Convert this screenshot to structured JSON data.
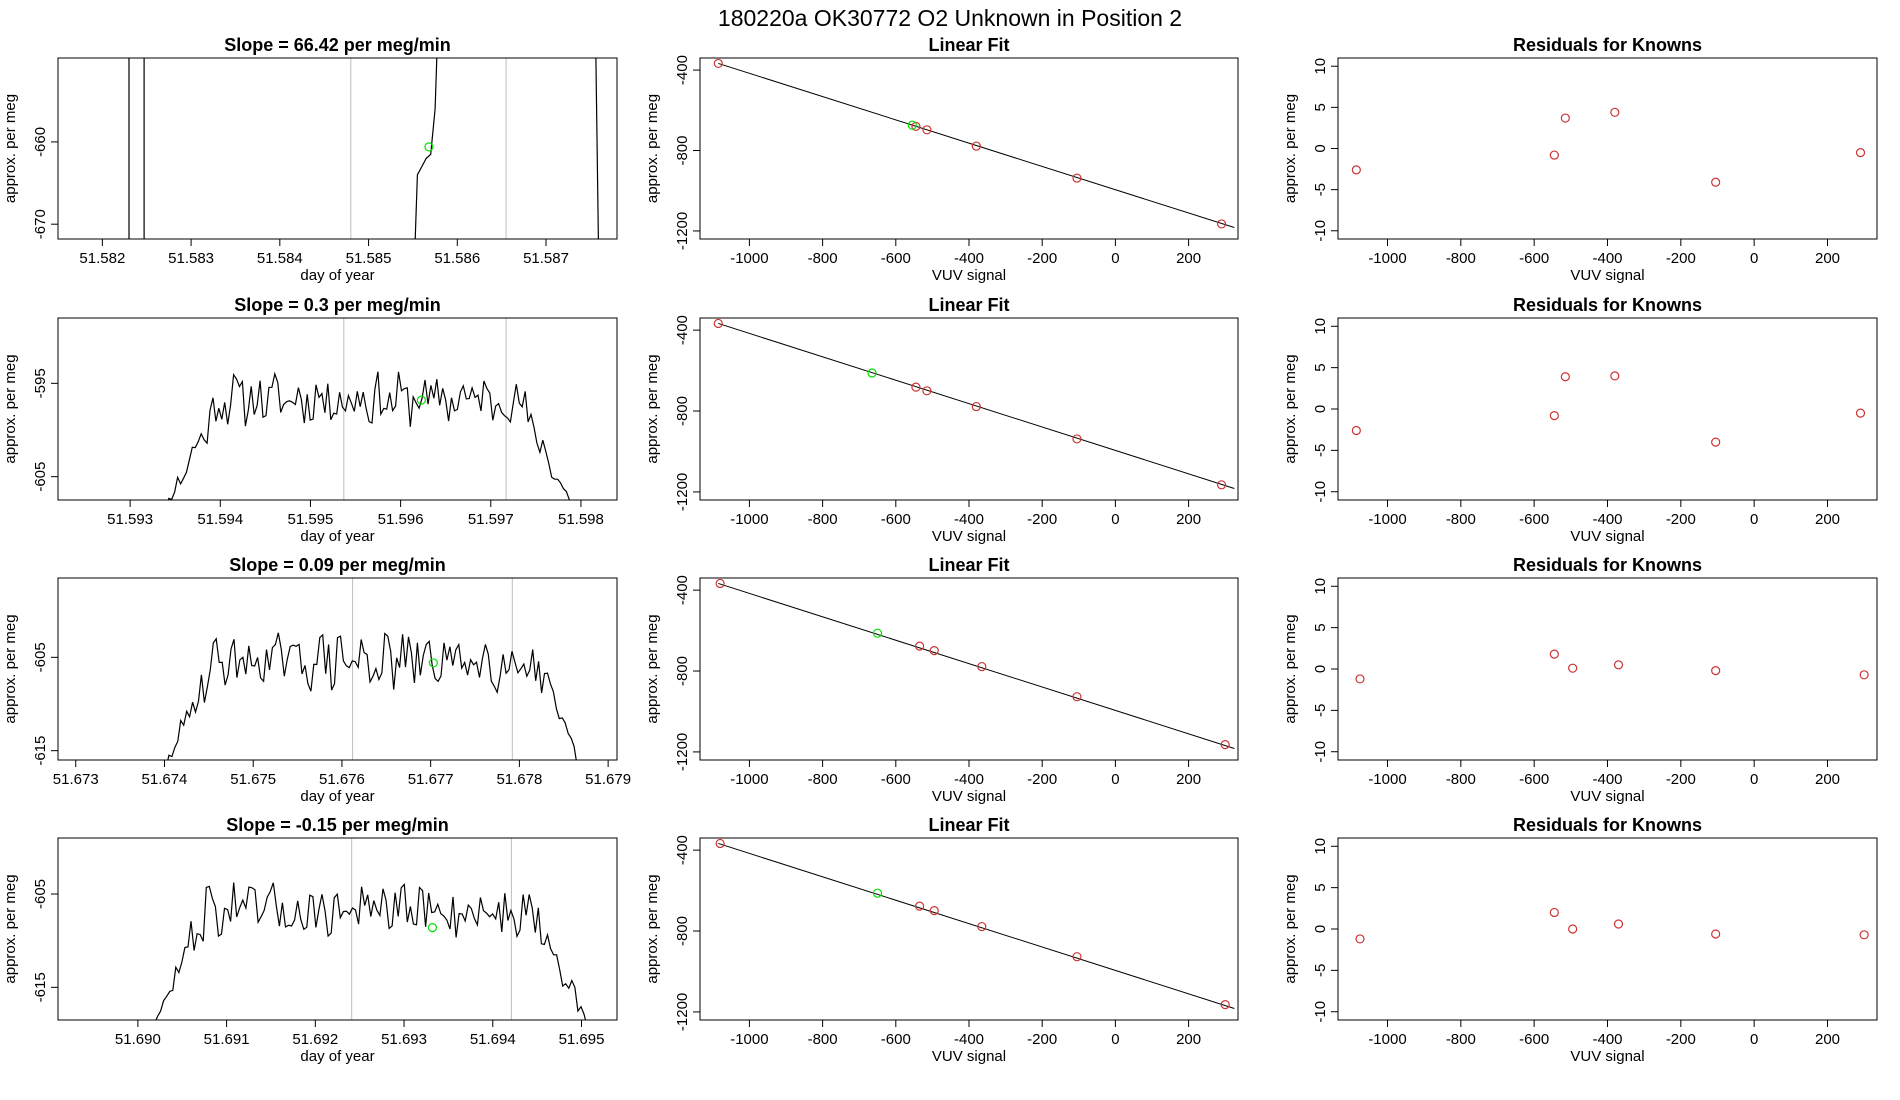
{
  "header": {
    "title": "180220a      OK30772    O2 Unknown in Position  2"
  },
  "colors": {
    "line": "#000000",
    "known": "#cd3333",
    "unknown": "#00e000",
    "vline": "#bebebe"
  },
  "chart_data": [
    {
      "type": "line",
      "row": 0,
      "panel": "timeseries",
      "title": "Slope =  66.42  per meg/min",
      "xlabel": "day of year",
      "ylabel": "approx. per meg",
      "xlim": [
        51.5815,
        51.5878
      ],
      "ylim": [
        -671.8,
        -649.8
      ],
      "xticks": [
        51.582,
        51.583,
        51.584,
        51.585,
        51.586,
        51.587
      ],
      "xtick_labels": [
        "51.582",
        "51.583",
        "51.584",
        "51.585",
        "51.586",
        "51.587"
      ],
      "yticks": [
        -670,
        -660
      ],
      "ytick_labels": [
        "-670",
        "-660"
      ],
      "vlines": [
        51.5848,
        51.58655
      ],
      "series": [
        {
          "name": "spike1",
          "x": [
            51.5823,
            51.5823
          ],
          "y": [
            -680,
            -640
          ]
        },
        {
          "name": "spike2",
          "x": [
            51.58247,
            51.58247
          ],
          "y": [
            -640,
            -680
          ]
        },
        {
          "name": "trace",
          "x": [
            51.5855,
            51.58555,
            51.5856,
            51.58565,
            51.5857,
            51.58575,
            51.5858
          ],
          "y": [
            -680,
            -664,
            -663,
            -662,
            -661.5,
            -656,
            -640
          ]
        },
        {
          "name": "trace-end",
          "x": [
            51.58755,
            51.5876
          ],
          "y": [
            -640,
            -680
          ]
        }
      ],
      "unknown_point": {
        "x": 51.58568,
        "y": -660.6
      }
    },
    {
      "type": "scatter",
      "row": 0,
      "panel": "linear-fit",
      "title": "Linear Fit",
      "xlabel": "VUV signal",
      "ylabel": "approx. per meg",
      "xlim": [
        -1135,
        335
      ],
      "ylim": [
        -1240,
        -340
      ],
      "xticks": [
        -1000,
        -800,
        -600,
        -400,
        -200,
        0,
        200
      ],
      "xtick_labels": [
        "-1000",
        "-800",
        "-600",
        "-400",
        "-200",
        "0",
        "200"
      ],
      "yticks": [
        -400,
        -800,
        -1200
      ],
      "ytick_labels": [
        "-400",
        "-800",
        "-1200"
      ],
      "line": {
        "x": [
          -1085,
          325
        ],
        "y": [
          -367,
          -1183
        ]
      },
      "knowns": {
        "x": [
          -1085,
          -545,
          -515,
          -380,
          -105,
          290
        ],
        "y": [
          -367,
          -680,
          -697,
          -778,
          -937,
          -1165
        ]
      },
      "unknown": {
        "x": -555,
        "y": -674
      }
    },
    {
      "type": "scatter",
      "row": 0,
      "panel": "residuals",
      "title": "Residuals for Knowns",
      "xlabel": "VUV signal",
      "ylabel": "approx. per meg",
      "xlim": [
        -1135,
        335
      ],
      "ylim": [
        -11,
        11
      ],
      "xticks": [
        -1000,
        -800,
        -600,
        -400,
        -200,
        0,
        200
      ],
      "xtick_labels": [
        "-1000",
        "-800",
        "-600",
        "-400",
        "-200",
        "0",
        "200"
      ],
      "yticks": [
        -10,
        -5,
        0,
        5,
        10
      ],
      "ytick_labels": [
        "-10",
        "-5",
        "0",
        "5",
        "10"
      ],
      "points": {
        "x": [
          -1085,
          -545,
          -515,
          -380,
          -105,
          290
        ],
        "y": [
          -2.6,
          -0.8,
          3.7,
          4.4,
          -4.1,
          -0.5
        ]
      }
    },
    {
      "type": "line",
      "row": 1,
      "panel": "timeseries",
      "title": "Slope =  0.3  per meg/min",
      "xlabel": "day of year",
      "ylabel": "approx. per meg",
      "xlim": [
        51.5922,
        51.5984
      ],
      "ylim": [
        -607.5,
        -588
      ],
      "xticks": [
        51.593,
        51.594,
        51.595,
        51.596,
        51.597,
        51.598
      ],
      "xtick_labels": [
        "51.593",
        "51.594",
        "51.595",
        "51.596",
        "51.597",
        "51.598"
      ],
      "yticks": [
        -605,
        -595
      ],
      "ytick_labels": [
        "-605",
        "-595"
      ],
      "vlines": [
        51.59537,
        51.59717
      ],
      "series": [
        {
          "name": "trace",
          "x": [
            51.5932,
            51.5981
          ],
          "edge_y": -612,
          "mean": -596.7,
          "amp": 2.4,
          "rise": 0.0008,
          "seed": 11
        }
      ],
      "unknown_point": {
        "x": 51.59623,
        "y": -596.8
      }
    },
    {
      "type": "scatter",
      "row": 1,
      "panel": "linear-fit",
      "title": "Linear Fit",
      "xlabel": "VUV signal",
      "ylabel": "approx. per meg",
      "xlim": [
        -1135,
        335
      ],
      "ylim": [
        -1240,
        -340
      ],
      "xticks": [
        -1000,
        -800,
        -600,
        -400,
        -200,
        0,
        200
      ],
      "xtick_labels": [
        "-1000",
        "-800",
        "-600",
        "-400",
        "-200",
        "0",
        "200"
      ],
      "yticks": [
        -400,
        -800,
        -1200
      ],
      "ytick_labels": [
        "-400",
        "-800",
        "-1200"
      ],
      "line": {
        "x": [
          -1085,
          325
        ],
        "y": [
          -367,
          -1183
        ]
      },
      "knowns": {
        "x": [
          -1085,
          -545,
          -515,
          -380,
          -105,
          290
        ],
        "y": [
          -367,
          -682,
          -700,
          -778,
          -938,
          -1165
        ]
      },
      "unknown": {
        "x": -665,
        "y": -612
      }
    },
    {
      "type": "scatter",
      "row": 1,
      "panel": "residuals",
      "title": "Residuals for Knowns",
      "xlabel": "VUV signal",
      "ylabel": "approx. per meg",
      "xlim": [
        -1135,
        335
      ],
      "ylim": [
        -11,
        11
      ],
      "xticks": [
        -1000,
        -800,
        -600,
        -400,
        -200,
        0,
        200
      ],
      "xtick_labels": [
        "-1000",
        "-800",
        "-600",
        "-400",
        "-200",
        "0",
        "200"
      ],
      "yticks": [
        -10,
        -5,
        0,
        5,
        10
      ],
      "ytick_labels": [
        "-10",
        "-5",
        "0",
        "5",
        "10"
      ],
      "points": {
        "x": [
          -1085,
          -545,
          -515,
          -380,
          -105,
          290
        ],
        "y": [
          -2.6,
          -0.8,
          3.9,
          4.0,
          -4.0,
          -0.5
        ]
      }
    },
    {
      "type": "line",
      "row": 2,
      "panel": "timeseries",
      "title": "Slope =  0.09  per meg/min",
      "xlabel": "day of year",
      "ylabel": "approx. per meg",
      "xlim": [
        51.6728,
        51.6791
      ],
      "ylim": [
        -616,
        -596.5
      ],
      "xticks": [
        51.673,
        51.674,
        51.675,
        51.676,
        51.677,
        51.678,
        51.679
      ],
      "xtick_labels": [
        "51.673",
        "51.674",
        "51.675",
        "51.676",
        "51.677",
        "51.678",
        "51.679"
      ],
      "yticks": [
        -615,
        -605
      ],
      "ytick_labels": [
        "-615",
        "-605"
      ],
      "vlines": [
        51.67612,
        51.67792
      ],
      "series": [
        {
          "name": "trace",
          "x": [
            51.67385,
            51.67885
          ],
          "edge_y": -620,
          "mean": -605.4,
          "amp": 2.6,
          "rise": 0.0007,
          "seed": 29
        }
      ],
      "unknown_point": {
        "x": 51.67703,
        "y": -605.6
      }
    },
    {
      "type": "scatter",
      "row": 2,
      "panel": "linear-fit",
      "title": "Linear Fit",
      "xlabel": "VUV signal",
      "ylabel": "approx. per meg",
      "xlim": [
        -1135,
        335
      ],
      "ylim": [
        -1240,
        -340
      ],
      "xticks": [
        -1000,
        -800,
        -600,
        -400,
        -200,
        0,
        200
      ],
      "xtick_labels": [
        "-1000",
        "-800",
        "-600",
        "-400",
        "-200",
        "0",
        "200"
      ],
      "yticks": [
        -400,
        -800,
        -1200
      ],
      "ytick_labels": [
        "-400",
        "-800",
        "-1200"
      ],
      "line": {
        "x": [
          -1085,
          325
        ],
        "y": [
          -367,
          -1183
        ]
      },
      "knowns": {
        "x": [
          -1080,
          -535,
          -495,
          -365,
          -105,
          300
        ],
        "y": [
          -367,
          -677,
          -699,
          -778,
          -927,
          -1164
        ]
      },
      "unknown": {
        "x": -650,
        "y": -613
      }
    },
    {
      "type": "scatter",
      "row": 2,
      "panel": "residuals",
      "title": "Residuals for Knowns",
      "xlabel": "VUV signal",
      "ylabel": "approx. per meg",
      "xlim": [
        -1135,
        335
      ],
      "ylim": [
        -11,
        11
      ],
      "xticks": [
        -1000,
        -800,
        -600,
        -400,
        -200,
        0,
        200
      ],
      "xtick_labels": [
        "-1000",
        "-800",
        "-600",
        "-400",
        "-200",
        "0",
        "200"
      ],
      "yticks": [
        -10,
        -5,
        0,
        5,
        10
      ],
      "ytick_labels": [
        "-10",
        "-5",
        "0",
        "5",
        "10"
      ],
      "points": {
        "x": [
          -1075,
          -545,
          -495,
          -370,
          -105,
          300
        ],
        "y": [
          -1.2,
          1.8,
          0.1,
          0.5,
          -0.2,
          -0.7
        ]
      }
    },
    {
      "type": "line",
      "row": 3,
      "panel": "timeseries",
      "title": "Slope =  -0.15  per meg/min",
      "xlabel": "day of year",
      "ylabel": "approx. per meg",
      "xlim": [
        51.6891,
        51.6954
      ],
      "ylim": [
        -618.5,
        -599
      ],
      "xticks": [
        51.69,
        51.691,
        51.692,
        51.693,
        51.694,
        51.695
      ],
      "xtick_labels": [
        "51.690",
        "51.691",
        "51.692",
        "51.693",
        "51.694",
        "51.695"
      ],
      "yticks": [
        -615,
        -605
      ],
      "ytick_labels": [
        "-615",
        "-605"
      ],
      "vlines": [
        51.69241,
        51.69421
      ],
      "series": [
        {
          "name": "trace",
          "x": [
            51.69005,
            51.6952
          ],
          "edge_y": -622,
          "mean": -606.8,
          "amp": 2.5,
          "rise": 0.0007,
          "seed": 47
        }
      ],
      "unknown_point": {
        "x": 51.69332,
        "y": -608.6
      }
    },
    {
      "type": "scatter",
      "row": 3,
      "panel": "linear-fit",
      "title": "Linear Fit",
      "xlabel": "VUV signal",
      "ylabel": "approx. per meg",
      "xlim": [
        -1135,
        335
      ],
      "ylim": [
        -1240,
        -340
      ],
      "xticks": [
        -1000,
        -800,
        -600,
        -400,
        -200,
        0,
        200
      ],
      "xtick_labels": [
        "-1000",
        "-800",
        "-600",
        "-400",
        "-200",
        "0",
        "200"
      ],
      "yticks": [
        -400,
        -800,
        -1200
      ],
      "ytick_labels": [
        "-400",
        "-800",
        "-1200"
      ],
      "line": {
        "x": [
          -1085,
          325
        ],
        "y": [
          -367,
          -1183
        ]
      },
      "knowns": {
        "x": [
          -1080,
          -535,
          -495,
          -365,
          -105,
          300
        ],
        "y": [
          -367,
          -677,
          -699,
          -778,
          -927,
          -1164
        ]
      },
      "unknown": {
        "x": -650,
        "y": -613
      }
    },
    {
      "type": "scatter",
      "row": 3,
      "panel": "residuals",
      "title": "Residuals for Knowns",
      "xlabel": "VUV signal",
      "ylabel": "approx. per meg",
      "xlim": [
        -1135,
        335
      ],
      "ylim": [
        -11,
        11
      ],
      "xticks": [
        -1000,
        -800,
        -600,
        -400,
        -200,
        0,
        200
      ],
      "xtick_labels": [
        "-1000",
        "-800",
        "-600",
        "-400",
        "-200",
        "0",
        "200"
      ],
      "yticks": [
        -10,
        -5,
        0,
        5,
        10
      ],
      "ytick_labels": [
        "-10",
        "-5",
        "0",
        "5",
        "10"
      ],
      "points": {
        "x": [
          -1075,
          -545,
          -495,
          -370,
          -105,
          300
        ],
        "y": [
          -1.2,
          2.0,
          0.0,
          0.6,
          -0.6,
          -0.7
        ]
      }
    }
  ]
}
